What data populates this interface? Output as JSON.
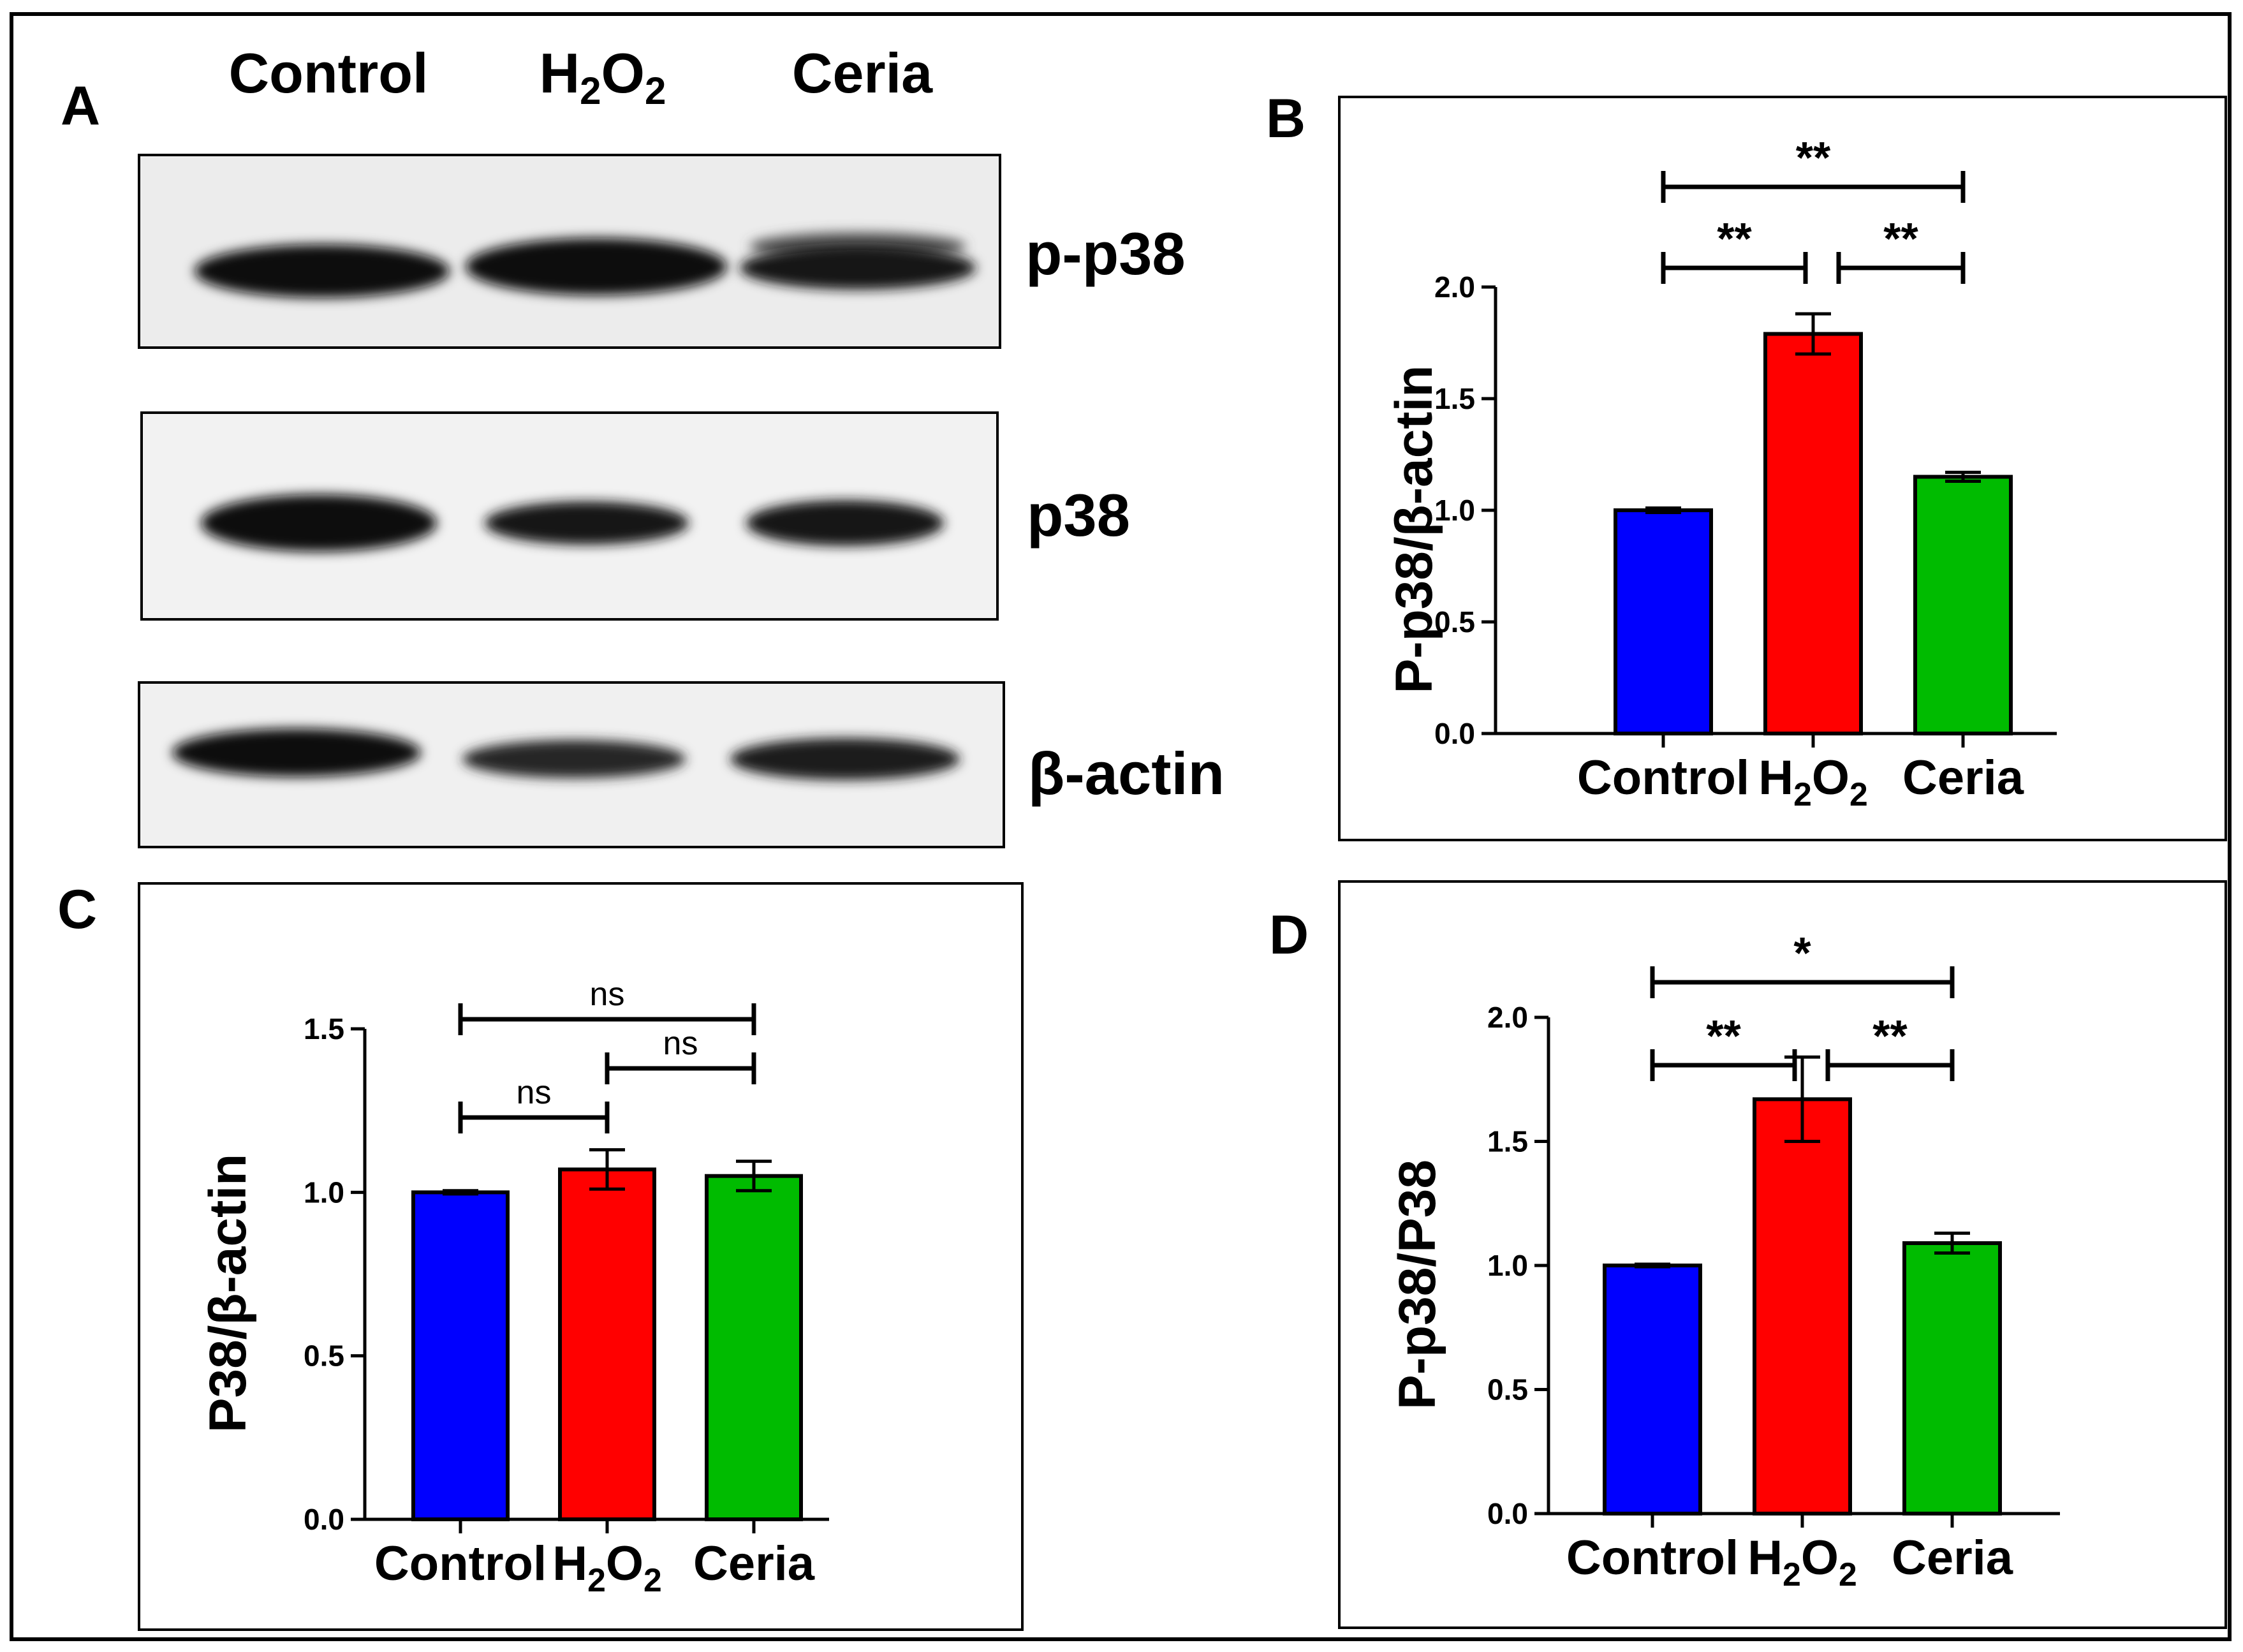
{
  "panel_letters": {
    "a": "A",
    "b": "B",
    "c": "C",
    "d": "D"
  },
  "blot": {
    "lanes": [
      "Control",
      "H2O2",
      "Ceria"
    ],
    "bands": [
      {
        "label": "p-p38"
      },
      {
        "label": "p38"
      },
      {
        "label": "β-actin"
      }
    ]
  },
  "chart_data": [
    {
      "panel": "B",
      "type": "bar",
      "categories": [
        "Control",
        "H2O2",
        "Ceria"
      ],
      "values": [
        1.0,
        1.79,
        1.15
      ],
      "errors": [
        0.01,
        0.09,
        0.02
      ],
      "colors": [
        "#0000ff",
        "#ff0000",
        "#00bb00"
      ],
      "ylabel": "P-p38/β-actin",
      "ylim": [
        0,
        2.0
      ],
      "yticks": [
        "0.0",
        "0.5",
        "1.0",
        "1.5",
        "2.0"
      ],
      "significance": [
        {
          "from": 0,
          "to": 2,
          "label": "**",
          "level": 2
        },
        {
          "from": 0,
          "to": 1,
          "label": "**",
          "level": 1
        },
        {
          "from": 1,
          "to": 2,
          "label": "**",
          "level": 1
        }
      ]
    },
    {
      "panel": "C",
      "type": "bar",
      "categories": [
        "Control",
        "H2O2",
        "Ceria"
      ],
      "values": [
        1.0,
        1.07,
        1.05
      ],
      "errors": [
        0.005,
        0.06,
        0.045
      ],
      "colors": [
        "#0000ff",
        "#ff0000",
        "#00bb00"
      ],
      "ylabel": "P38/β-actin",
      "ylim": [
        0,
        1.5
      ],
      "yticks": [
        "0.0",
        "0.5",
        "1.0",
        "1.5"
      ],
      "significance": [
        {
          "from": 0,
          "to": 2,
          "label": "ns",
          "level": 3
        },
        {
          "from": 0,
          "to": 1,
          "label": "ns",
          "level": 1
        },
        {
          "from": 1,
          "to": 2,
          "label": "ns",
          "level": 2
        }
      ]
    },
    {
      "panel": "D",
      "type": "bar",
      "categories": [
        "Control",
        "H2O2",
        "Ceria"
      ],
      "values": [
        1.0,
        1.67,
        1.09
      ],
      "errors": [
        0.005,
        0.17,
        0.04
      ],
      "colors": [
        "#0000ff",
        "#ff0000",
        "#00bb00"
      ],
      "ylabel": "P-p38/P38",
      "ylim": [
        0,
        2.0
      ],
      "yticks": [
        "0.0",
        "0.5",
        "1.0",
        "1.5",
        "2.0"
      ],
      "significance": [
        {
          "from": 0,
          "to": 2,
          "label": "*",
          "level": 2
        },
        {
          "from": 0,
          "to": 1,
          "label": "**",
          "level": 1
        },
        {
          "from": 1,
          "to": 2,
          "label": "**",
          "level": 1
        }
      ]
    }
  ]
}
